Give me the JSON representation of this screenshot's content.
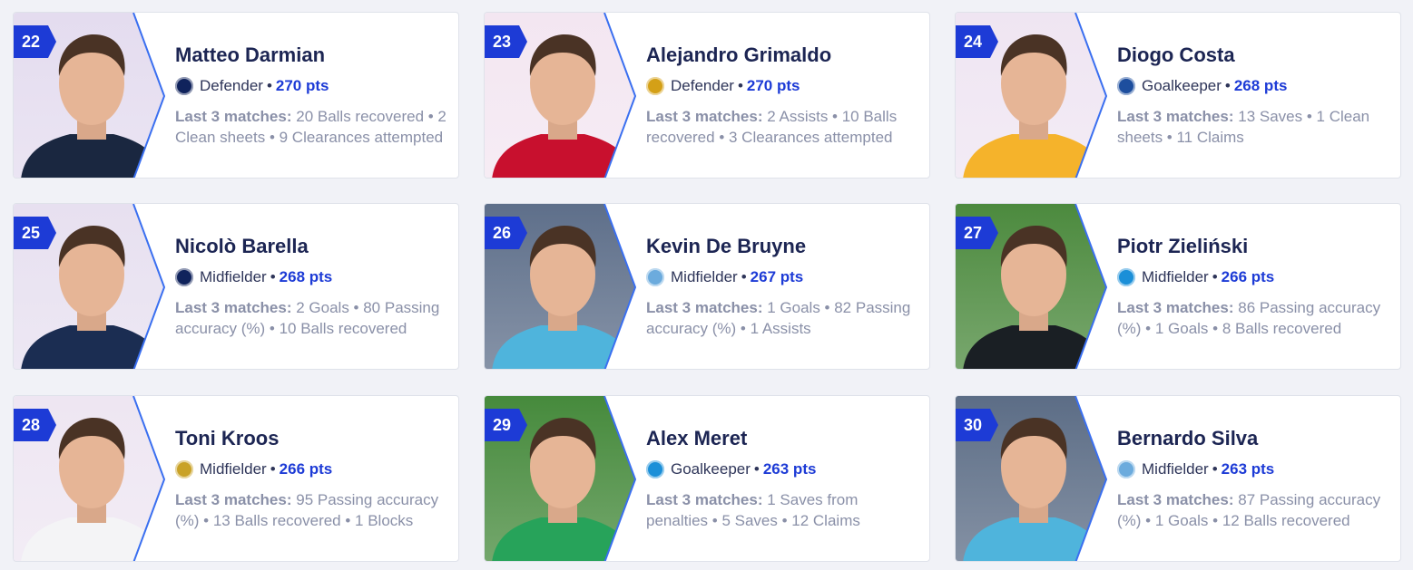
{
  "stats_label": "Last 3 matches:",
  "players": [
    {
      "rank": "22",
      "name": "Matteo Darmian",
      "position": "Defender",
      "points": "270 pts",
      "club_icon": "inter-crest-icon",
      "club_color": "#10235c",
      "photo_bg": "#e4dcef",
      "jersey": "#1a2740",
      "stats": "20 Balls recovered • 2 Clean sheets • 9 Clearances attempted"
    },
    {
      "rank": "23",
      "name": "Alejandro Grimaldo",
      "position": "Defender",
      "points": "270 pts",
      "club_icon": "benfica-crest-icon",
      "club_color": "#d4a017",
      "photo_bg": "#f3e6f1",
      "jersey": "#c8102e",
      "stats": "2 Assists • 10 Balls recovered • 3 Clearances attempted"
    },
    {
      "rank": "24",
      "name": "Diogo Costa",
      "position": "Goalkeeper",
      "points": "268 pts",
      "club_icon": "porto-crest-icon",
      "club_color": "#1d4e9e",
      "photo_bg": "#efe5f2",
      "jersey": "#f5b32b",
      "stats": "13 Saves • 1 Clean sheets • 11 Claims"
    },
    {
      "rank": "25",
      "name": "Nicolò Barella",
      "position": "Midfielder",
      "points": "268 pts",
      "club_icon": "inter-crest-icon",
      "club_color": "#10235c",
      "photo_bg": "#e7e0f0",
      "jersey": "#1b2d52",
      "stats": "2 Goals • 80 Passing accuracy (%) • 10 Balls recovered"
    },
    {
      "rank": "26",
      "name": "Kevin De Bruyne",
      "position": "Midfielder",
      "points": "267 pts",
      "club_icon": "man-city-crest-icon",
      "club_color": "#6cabdd",
      "photo_bg": "#5e6f8a",
      "jersey": "#4fb4dc",
      "stats": "1 Goals • 82 Passing accuracy (%) • 1 Assists"
    },
    {
      "rank": "27",
      "name": "Piotr Zieliński",
      "position": "Midfielder",
      "points": "266 pts",
      "club_icon": "napoli-crest-icon",
      "club_color": "#1b8fd8",
      "photo_bg": "#4c8a3e",
      "jersey": "#1a1f24",
      "stats": "86 Passing accuracy (%) • 1 Goals • 8 Balls recovered"
    },
    {
      "rank": "28",
      "name": "Toni Kroos",
      "position": "Midfielder",
      "points": "266 pts",
      "club_icon": "real-madrid-crest-icon",
      "club_color": "#c9a227",
      "photo_bg": "#eee6f2",
      "jersey": "#f4f4f6",
      "stats": "95 Passing accuracy (%) • 13 Balls recovered • 1 Blocks"
    },
    {
      "rank": "29",
      "name": "Alex Meret",
      "position": "Goalkeeper",
      "points": "263 pts",
      "club_icon": "napoli-crest-icon",
      "club_color": "#1b8fd8",
      "photo_bg": "#468a3c",
      "jersey": "#27a35a",
      "stats": "1 Saves from penalties • 5 Saves • 12 Claims"
    },
    {
      "rank": "30",
      "name": "Bernardo Silva",
      "position": "Midfielder",
      "points": "263 pts",
      "club_icon": "man-city-crest-icon",
      "club_color": "#6cabdd",
      "photo_bg": "#5c6d86",
      "jersey": "#4fb4dc",
      "stats": "87 Passing accuracy (%) • 1 Goals • 12 Balls recovered"
    }
  ]
}
